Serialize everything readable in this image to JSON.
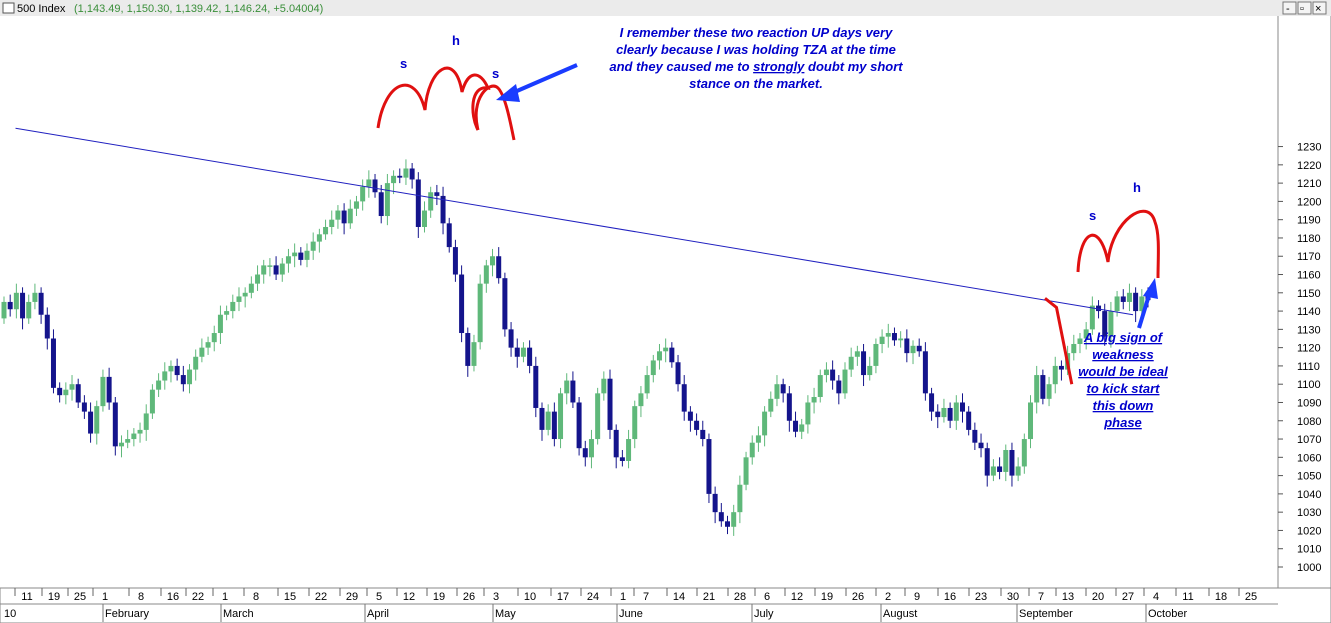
{
  "window": {
    "title_name": "500 Index",
    "title_values": "(1,143.49, 1,150.30, 1,139.42, 1,146.24, +5.04004)",
    "controls": [
      "-",
      "▫",
      "×"
    ]
  },
  "colors": {
    "up_candle": "#5fb87a",
    "down_candle": "#14148c",
    "trendline": "#2020c0",
    "pattern": "#e01010",
    "arrow": "#1a3cff",
    "annotation_text": "#0000cc"
  },
  "annotations": {
    "note1": [
      "I remember these two reaction UP days very",
      "clearly because I was holding TZA at the time",
      "and they caused me to strongly doubt my short",
      "stance on the market."
    ],
    "note1_underlined_word": "strongly",
    "note2": [
      "A big sign of",
      "weakness",
      "would be ideal",
      "to kick start",
      "this down",
      "phase"
    ],
    "pattern_labels_1": [
      "s",
      "h",
      "s"
    ],
    "pattern_labels_2": [
      "s",
      "h"
    ]
  },
  "chart_data": {
    "type": "candlestick",
    "title": "500 Index",
    "y_ticks": [
      1000,
      1010,
      1020,
      1030,
      1040,
      1050,
      1060,
      1070,
      1080,
      1090,
      1100,
      1110,
      1120,
      1130,
      1140,
      1150,
      1160,
      1170,
      1180,
      1190,
      1200,
      1210,
      1220,
      1230
    ],
    "ylim": [
      993,
      1240
    ],
    "x_day_ticks": [
      "11",
      "19",
      "25",
      "1",
      "8",
      "16",
      "22",
      "1",
      "8",
      "15",
      "22",
      "29",
      "5",
      "12",
      "19",
      "26",
      "3",
      "10",
      "17",
      "24",
      "1",
      "7",
      "14",
      "21",
      "28",
      "6",
      "12",
      "19",
      "26",
      "2",
      "9",
      "16",
      "23",
      "30",
      "7",
      "13",
      "20",
      "27",
      "4",
      "11",
      "18",
      "25"
    ],
    "x_month_labels": [
      "10",
      "February",
      "March",
      "April",
      "May",
      "June",
      "July",
      "August",
      "September",
      "October"
    ],
    "trendline": {
      "start": {
        "date": "2010-01-08",
        "value": 1240
      },
      "end": {
        "date": "2010-10-27",
        "value": 1138
      }
    },
    "projection_path": [
      {
        "date": "2010-10-04",
        "value": 1147
      },
      {
        "date": "2010-10-07",
        "value": 1142
      },
      {
        "date": "2010-10-11",
        "value": 1100
      }
    ]
  }
}
